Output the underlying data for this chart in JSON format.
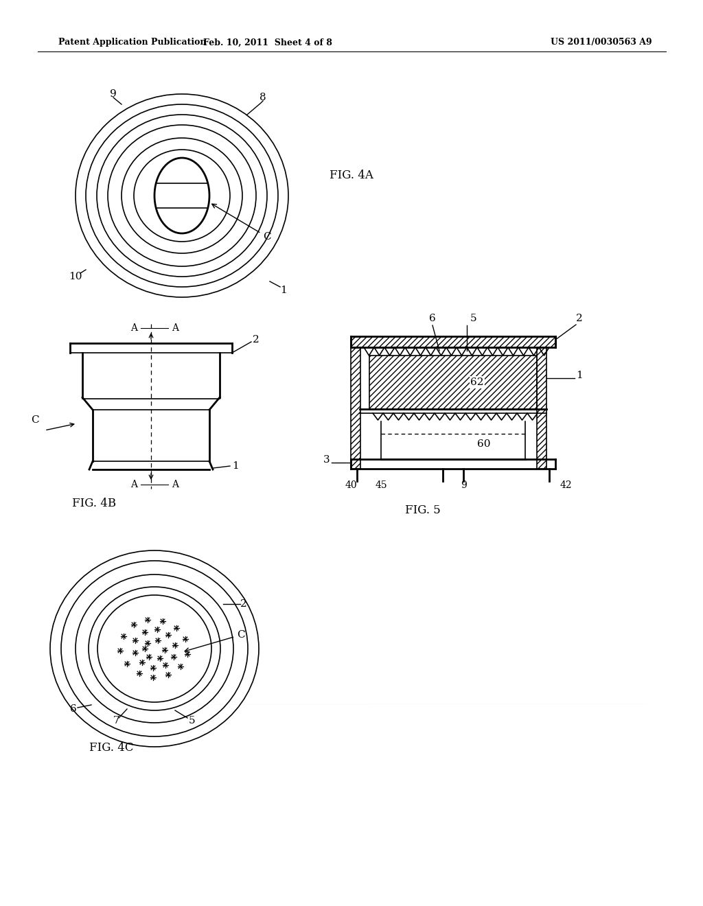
{
  "bg_color": "#ffffff",
  "text_color": "#000000",
  "line_color": "#000000",
  "header_left": "Patent Application Publication",
  "header_center": "Feb. 10, 2011  Sheet 4 of 8",
  "header_right": "US 2011/0030563 A9",
  "fig4a_label": "FIG. 4A",
  "fig4b_label": "FIG. 4B",
  "fig4c_label": "FIG. 4C",
  "fig5_label": "FIG. 5"
}
